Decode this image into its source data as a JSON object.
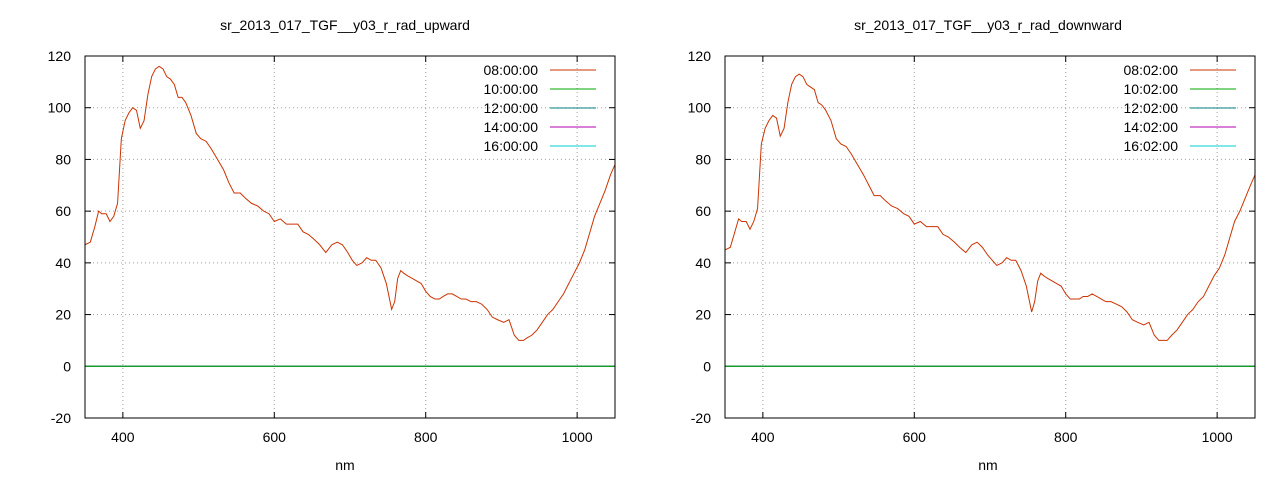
{
  "chart_data": [
    {
      "type": "line",
      "title": "sr_2013_017_TGF__y03_r_rad_upward",
      "xlabel": "nm",
      "ylabel": "",
      "xlim": [
        350,
        1050
      ],
      "ylim": [
        -20,
        120
      ],
      "xticks": [
        400,
        600,
        800,
        1000
      ],
      "yticks": [
        -20,
        0,
        20,
        40,
        60,
        80,
        100,
        120
      ],
      "grid": true,
      "legend_position": "top-right",
      "series": [
        {
          "name": "08:00:00",
          "color": "#cc3300",
          "x": [
            350,
            357,
            363,
            368,
            372,
            378,
            383,
            388,
            393,
            398,
            403,
            408,
            413,
            418,
            423,
            428,
            433,
            438,
            443,
            448,
            453,
            458,
            463,
            468,
            473,
            478,
            483,
            490,
            497,
            503,
            510,
            517,
            525,
            533,
            540,
            547,
            555,
            562,
            570,
            578,
            586,
            593,
            600,
            608,
            616,
            624,
            631,
            638,
            645,
            653,
            660,
            668,
            676,
            683,
            690,
            697,
            703,
            709,
            716,
            722,
            728,
            734,
            741,
            748,
            755,
            759,
            763,
            767,
            771,
            776,
            782,
            788,
            794,
            800,
            806,
            812,
            818,
            823,
            829,
            835,
            841,
            847,
            853,
            860,
            867,
            874,
            881,
            888,
            895,
            903,
            910,
            917,
            923,
            929,
            934,
            940,
            947,
            954,
            961,
            968,
            975,
            982,
            989,
            996,
            1003,
            1010,
            1017,
            1023,
            1030,
            1037,
            1044,
            1050
          ],
          "values": [
            47,
            48,
            54,
            60,
            59,
            59,
            56,
            58,
            63,
            88,
            95,
            98,
            100,
            99,
            92,
            95,
            105,
            112,
            115,
            116,
            115,
            112,
            111,
            109,
            104,
            104,
            102,
            97,
            90,
            88,
            87,
            84,
            80,
            76,
            71,
            67,
            67,
            65,
            63,
            62,
            60,
            59,
            56,
            57,
            55,
            55,
            55,
            52,
            51,
            49,
            47,
            44,
            47,
            48,
            47,
            44,
            41,
            39,
            40,
            42,
            41,
            41,
            38,
            32,
            22,
            25,
            34,
            37,
            36,
            35,
            34,
            33,
            32,
            29,
            27,
            26,
            26,
            27,
            28,
            28,
            27,
            26,
            26,
            25,
            25,
            24,
            22,
            19,
            18,
            17,
            18,
            12,
            10,
            10,
            11,
            12,
            14,
            17,
            20,
            22,
            25,
            28,
            32,
            36,
            40,
            45,
            52,
            58,
            63,
            68,
            74,
            78
          ]
        },
        {
          "name": "10:00:00",
          "color": "#00aa00",
          "x": [
            350,
            1050
          ],
          "values": [
            0,
            0
          ]
        },
        {
          "name": "12:00:00",
          "color": "#008080",
          "x": [
            350,
            1050
          ],
          "values": [
            0,
            0
          ]
        },
        {
          "name": "14:00:00",
          "color": "#b000b0",
          "x": [
            350,
            1050
          ],
          "values": [
            0,
            0
          ]
        },
        {
          "name": "16:00:00",
          "color": "#00cccc",
          "x": [
            350,
            1050
          ],
          "values": [
            0,
            0
          ]
        }
      ]
    },
    {
      "type": "line",
      "title": "sr_2013_017_TGF__y03_r_rad_downward",
      "xlabel": "nm",
      "ylabel": "",
      "xlim": [
        350,
        1050
      ],
      "ylim": [
        -20,
        120
      ],
      "xticks": [
        400,
        600,
        800,
        1000
      ],
      "yticks": [
        -20,
        0,
        20,
        40,
        60,
        80,
        100,
        120
      ],
      "grid": true,
      "legend_position": "top-right",
      "series": [
        {
          "name": "08:02:00",
          "color": "#cc3300",
          "x": [
            350,
            357,
            363,
            368,
            372,
            378,
            383,
            388,
            393,
            398,
            403,
            408,
            413,
            418,
            423,
            428,
            433,
            438,
            443,
            448,
            453,
            458,
            463,
            468,
            473,
            478,
            483,
            490,
            497,
            503,
            510,
            517,
            525,
            533,
            540,
            547,
            555,
            562,
            570,
            578,
            586,
            593,
            600,
            608,
            616,
            624,
            631,
            638,
            645,
            653,
            660,
            668,
            676,
            683,
            690,
            697,
            703,
            709,
            716,
            722,
            728,
            734,
            741,
            748,
            755,
            759,
            763,
            767,
            771,
            776,
            782,
            788,
            794,
            800,
            806,
            812,
            818,
            823,
            829,
            835,
            841,
            847,
            853,
            860,
            867,
            874,
            881,
            888,
            895,
            903,
            910,
            917,
            923,
            929,
            934,
            940,
            947,
            954,
            961,
            968,
            975,
            982,
            989,
            996,
            1003,
            1010,
            1017,
            1023,
            1030,
            1037,
            1044,
            1050
          ],
          "values": [
            45,
            46,
            52,
            57,
            56,
            56,
            53,
            56,
            61,
            86,
            92,
            95,
            97,
            96,
            89,
            92,
            102,
            109,
            112,
            113,
            112,
            109,
            108,
            107,
            102,
            101,
            99,
            95,
            88,
            86,
            85,
            82,
            78,
            74,
            70,
            66,
            66,
            64,
            62,
            61,
            59,
            58,
            55,
            56,
            54,
            54,
            54,
            51,
            50,
            48,
            46,
            44,
            47,
            48,
            46,
            43,
            41,
            39,
            40,
            42,
            41,
            41,
            37,
            31,
            21,
            25,
            33,
            36,
            35,
            34,
            33,
            32,
            31,
            28,
            26,
            26,
            26,
            27,
            27,
            28,
            27,
            26,
            25,
            25,
            24,
            23,
            21,
            18,
            17,
            16,
            17,
            12,
            10,
            10,
            10,
            12,
            14,
            17,
            20,
            22,
            25,
            27,
            31,
            35,
            38,
            43,
            50,
            56,
            60,
            65,
            70,
            74
          ]
        },
        {
          "name": "10:02:00",
          "color": "#00aa00",
          "x": [
            350,
            1050
          ],
          "values": [
            0,
            0
          ]
        },
        {
          "name": "12:02:00",
          "color": "#008080",
          "x": [
            350,
            1050
          ],
          "values": [
            0,
            0
          ]
        },
        {
          "name": "14:02:00",
          "color": "#b000b0",
          "x": [
            350,
            1050
          ],
          "values": [
            0,
            0
          ]
        },
        {
          "name": "16:02:00",
          "color": "#00cccc",
          "x": [
            350,
            1050
          ],
          "values": [
            0,
            0
          ]
        }
      ]
    }
  ]
}
